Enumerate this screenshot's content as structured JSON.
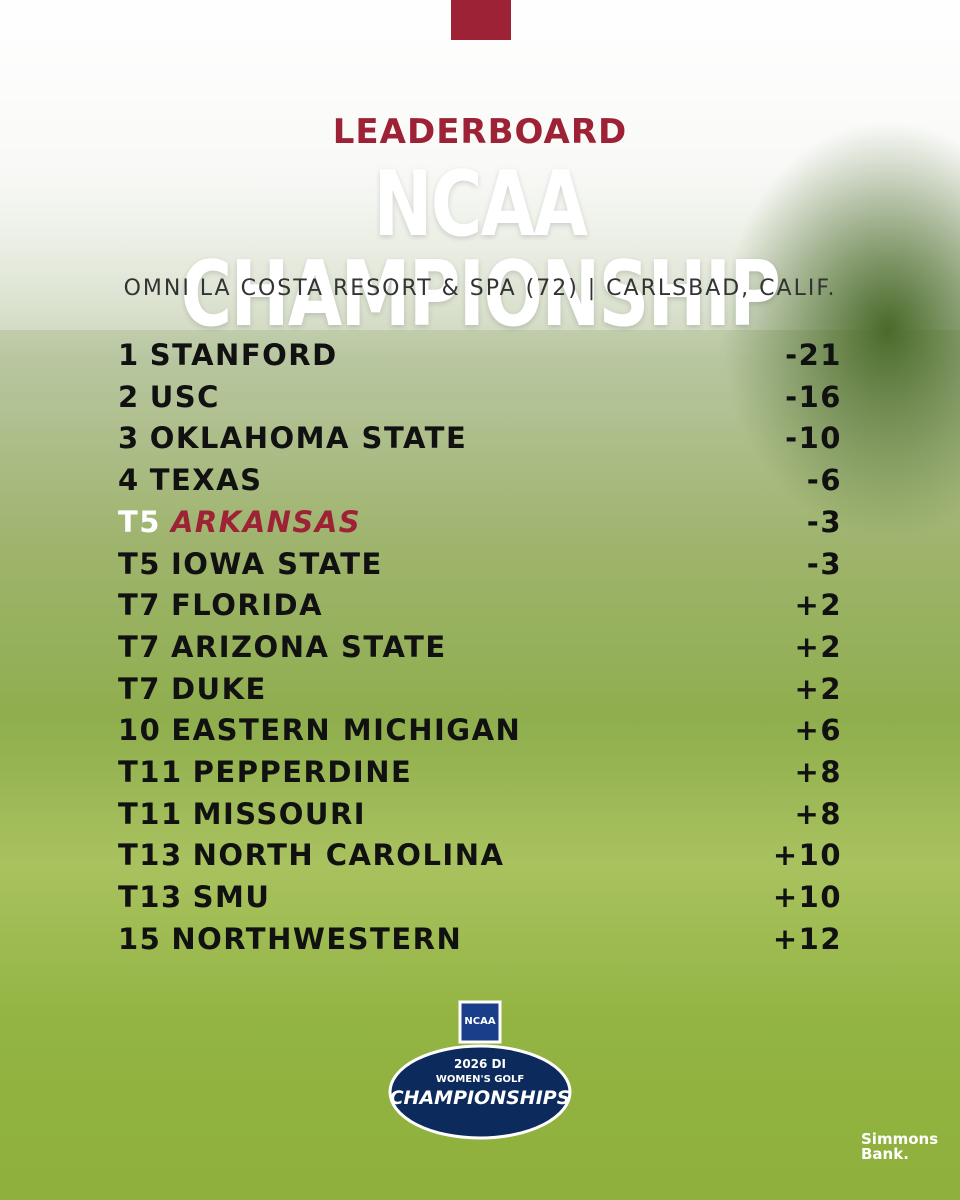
{
  "header": {
    "label": "LEADERBOARD",
    "title": "NCAA CHAMPIONSHIP",
    "subtitle": "OMNI LA COSTA RESORT & SPA (72) | CARLSBAD, CALIF."
  },
  "leaderboard": {
    "rows": [
      {
        "position": "1",
        "team": "STANFORD",
        "score": "-21"
      },
      {
        "position": "2",
        "team": "USC",
        "score": "-16"
      },
      {
        "position": "3",
        "team": "OKLAHOMA STATE",
        "score": "-10"
      },
      {
        "position": "4",
        "team": "TEXAS",
        "score": "-6"
      },
      {
        "position": "T5",
        "team": "ARKANSAS",
        "score": "-3",
        "highlighted": true
      },
      {
        "position": "T5",
        "team": "IOWA STATE",
        "score": "-3"
      },
      {
        "position": "T7",
        "team": "FLORIDA",
        "score": "+2"
      },
      {
        "position": "T7",
        "team": "ARIZONA STATE",
        "score": "+2"
      },
      {
        "position": "T7",
        "team": "DUKE",
        "score": "+2"
      },
      {
        "position": "10",
        "team": "EASTERN MICHIGAN",
        "score": "+6"
      },
      {
        "position": "T11",
        "team": "PEPPERDINE",
        "score": "+8"
      },
      {
        "position": "T11",
        "team": "MISSOURI",
        "score": "+8"
      },
      {
        "position": "T13",
        "team": "NORTH CAROLINA",
        "score": "+10"
      },
      {
        "position": "T13",
        "team": "SMU",
        "score": "+10"
      },
      {
        "position": "15",
        "team": "NORTHWESTERN",
        "score": "+12"
      }
    ]
  },
  "event_logo": {
    "badge": "NCAA",
    "year": "2026 DI",
    "line": "WOMEN'S GOLF",
    "name": "CHAMPIONSHIPS"
  },
  "sponsor": {
    "name": "Simmons",
    "suffix": "Bank."
  }
}
